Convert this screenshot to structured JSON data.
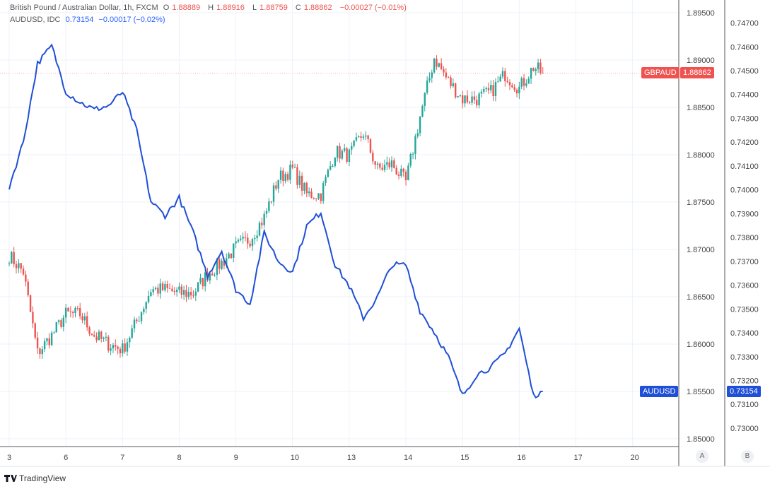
{
  "legend": {
    "main_title": "British Pound / Australian Dollar, 1h, FXCM",
    "o_label": "O",
    "o": "1.88889",
    "h_label": "H",
    "h": "1.88916",
    "l_label": "L",
    "l": "1.88759",
    "c_label": "C",
    "c": "1.88862",
    "change": "−0.00027 (−0.01%)",
    "second_title": "AUDUSD, IDC",
    "second_value": "0.73154",
    "second_change": "−0.00017 (−0.02%)"
  },
  "tags": {
    "gbpaud_label": "GBPAUD",
    "gbpaud_value": "1.88862",
    "audusd_label": "AUDUSD",
    "audusd_value": "0.73154"
  },
  "scale_buttons": {
    "a": "A",
    "b": "B"
  },
  "brand": "TradingView",
  "colors": {
    "up": "#26a69a",
    "down": "#ef5350",
    "line": "#1f4fd6",
    "grid": "#eef1f8",
    "gbpaud_tag": "#ef5350",
    "audusd_tag": "#1f4fd6"
  },
  "chart_data": {
    "type": "candlestick+line",
    "x_ticks": [
      "3",
      "6",
      "7",
      "8",
      "9",
      "10",
      "13",
      "14",
      "15",
      "16",
      "17",
      "20"
    ],
    "left_axis": {
      "series": "GBPAUD",
      "range": [
        1.848,
        1.897
      ],
      "ticks": [
        "1.89500",
        "1.89000",
        "1.88500",
        "1.88000",
        "1.87500",
        "1.87000",
        "1.86500",
        "1.86000",
        "1.85500",
        "1.85000"
      ]
    },
    "right_axis": {
      "series": "AUDUSD",
      "range": [
        0.7294,
        0.747
      ],
      "ticks": [
        "0.74700",
        "0.74600",
        "0.74500",
        "0.74400",
        "0.74300",
        "0.74200",
        "0.74100",
        "0.74000",
        "0.73900",
        "0.73800",
        "0.73700",
        "0.73600",
        "0.73500",
        "0.73400",
        "0.73300",
        "0.73200",
        "0.73100",
        "0.73000"
      ]
    },
    "grid": true,
    "x": [
      "3 00:00",
      "3 06:00",
      "3 12:00",
      "3 18:00",
      "6 00:00",
      "6 06:00",
      "6 12:00",
      "6 18:00",
      "7 00:00",
      "7 06:00",
      "7 12:00",
      "7 18:00",
      "8 00:00",
      "8 06:00",
      "8 12:00",
      "8 18:00",
      "9 00:00",
      "9 06:00",
      "9 12:00",
      "9 18:00",
      "10 00:00",
      "10 06:00",
      "10 12:00",
      "10 18:00",
      "13 00:00",
      "13 06:00",
      "13 12:00",
      "13 18:00",
      "14 00:00",
      "14 06:00",
      "14 12:00",
      "14 18:00",
      "15 00:00",
      "15 06:00",
      "15 12:00",
      "15 18:00",
      "16 00:00",
      "16 06:00",
      "16 10:00"
    ],
    "series": [
      {
        "name": "GBPAUD",
        "style": "candles",
        "values": [
          1.86934,
          1.86762,
          1.85904,
          1.86091,
          1.86315,
          1.86315,
          1.86091,
          1.86001,
          1.85942,
          1.8624,
          1.86576,
          1.86576,
          1.86538,
          1.86538,
          1.8674,
          1.86859,
          1.87023,
          1.87113,
          1.87337,
          1.87754,
          1.87844,
          1.87583,
          1.87583,
          1.8803,
          1.87993,
          1.88232,
          1.87844,
          1.87904,
          1.8771,
          1.88403,
          1.89023,
          1.88776,
          1.8859,
          1.8859,
          1.88664,
          1.88851,
          1.88702,
          1.88926,
          1.88862
        ]
      },
      {
        "name": "AUDUSD",
        "style": "line",
        "values": [
          0.74011,
          0.74203,
          0.7453,
          0.74604,
          0.74411,
          0.74367,
          0.74337,
          0.74352,
          0.74411,
          0.74248,
          0.73951,
          0.73892,
          0.73966,
          0.73818,
          0.7364,
          0.73744,
          0.73581,
          0.73522,
          0.73818,
          0.737,
          0.73655,
          0.73848,
          0.73907,
          0.73685,
          0.73596,
          0.73462,
          0.73551,
          0.73685,
          0.73685,
          0.73492,
          0.73403,
          0.73299,
          0.73136,
          0.73225,
          0.73255,
          0.73314,
          0.73418,
          0.73136,
          0.73154
        ]
      }
    ]
  }
}
